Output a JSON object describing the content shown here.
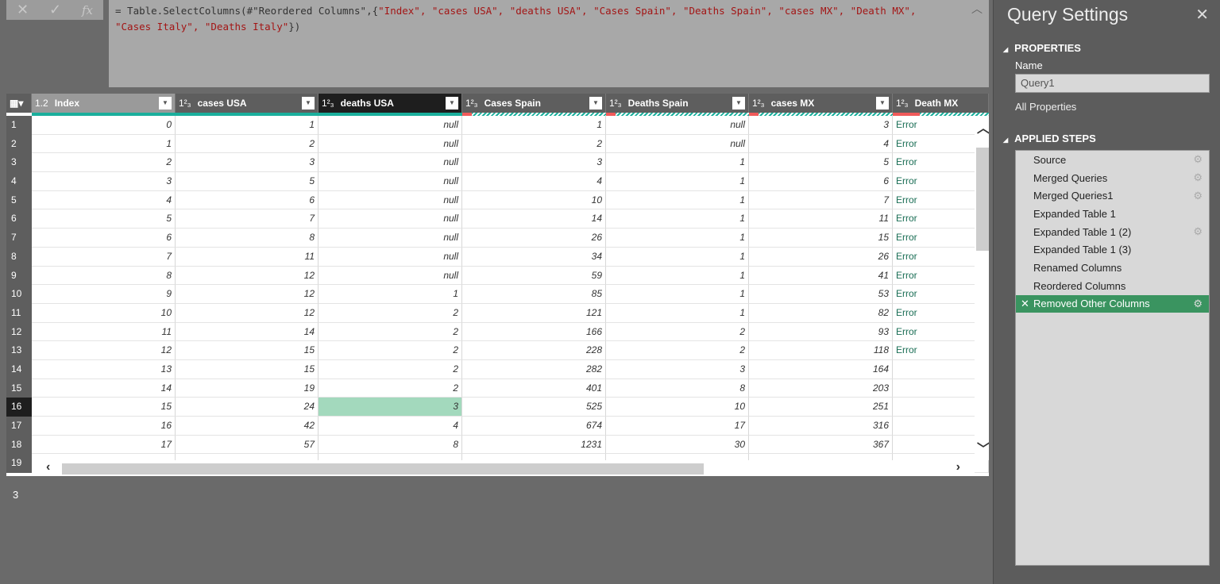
{
  "formula_bar": {
    "cancel_icon": "✕",
    "commit_icon": "✓",
    "fx_label": "fx",
    "prefix": "= Table.SelectColumns(#\"Reordered Columns\",{",
    "strings": "\"Index\", \"cases USA\", \"deaths USA\", \"Cases Spain\", \"Deaths Spain\", \"cases MX\", \"Death MX\", \"Cases Italy\", \"Deaths Italy\"",
    "suffix": "})"
  },
  "grid": {
    "columns": [
      {
        "type": "1.2",
        "name": "Index",
        "width": 181
      },
      {
        "type": "1²₃",
        "name": "cases USA",
        "width": 180
      },
      {
        "type": "1²₃",
        "name": "deaths USA",
        "width": 181,
        "selected": true
      },
      {
        "type": "1²₃",
        "name": "Cases Spain",
        "width": 181
      },
      {
        "type": "1²₃",
        "name": "Deaths Spain",
        "width": 180
      },
      {
        "type": "1²₃",
        "name": "cases MX",
        "width": 181
      },
      {
        "type": "1²₃",
        "name": "Death MX",
        "width": 121
      }
    ],
    "rows": [
      [
        "0",
        "1",
        "null",
        "1",
        "null",
        "3",
        "Error"
      ],
      [
        "1",
        "2",
        "null",
        "2",
        "null",
        "4",
        "Error"
      ],
      [
        "2",
        "3",
        "null",
        "3",
        "1",
        "5",
        "Error"
      ],
      [
        "3",
        "5",
        "null",
        "4",
        "1",
        "6",
        "Error"
      ],
      [
        "4",
        "6",
        "null",
        "10",
        "1",
        "7",
        "Error"
      ],
      [
        "5",
        "7",
        "null",
        "14",
        "1",
        "11",
        "Error"
      ],
      [
        "6",
        "8",
        "null",
        "26",
        "1",
        "15",
        "Error"
      ],
      [
        "7",
        "11",
        "null",
        "34",
        "1",
        "26",
        "Error"
      ],
      [
        "8",
        "12",
        "null",
        "59",
        "1",
        "41",
        "Error"
      ],
      [
        "9",
        "12",
        "1",
        "85",
        "1",
        "53",
        "Error"
      ],
      [
        "10",
        "12",
        "2",
        "121",
        "1",
        "82",
        "Error"
      ],
      [
        "11",
        "14",
        "2",
        "166",
        "2",
        "93",
        "Error"
      ],
      [
        "12",
        "15",
        "2",
        "228",
        "2",
        "118",
        "Error"
      ],
      [
        "13",
        "15",
        "2",
        "282",
        "3",
        "164",
        ""
      ],
      [
        "14",
        "19",
        "2",
        "401",
        "8",
        "203",
        ""
      ],
      [
        "15",
        "24",
        "3",
        "525",
        "10",
        "251",
        ""
      ],
      [
        "16",
        "42",
        "4",
        "674",
        "17",
        "316",
        ""
      ],
      [
        "17",
        "57",
        "8",
        "1231",
        "30",
        "367",
        ""
      ],
      [
        "",
        "",
        "",
        "",
        "",
        "",
        ""
      ]
    ],
    "selected_row": 16,
    "highlight_color": "#a3d9bd"
  },
  "status_value": "3",
  "query_settings": {
    "title": "Query Settings",
    "properties_header": "PROPERTIES",
    "name_label": "Name",
    "name_value": "Query1",
    "all_properties": "All Properties",
    "applied_steps_header": "APPLIED STEPS",
    "steps": [
      {
        "label": "Source",
        "gear": true
      },
      {
        "label": "Merged Queries",
        "gear": true
      },
      {
        "label": "Merged Queries1",
        "gear": true
      },
      {
        "label": "Expanded Table 1",
        "gear": false
      },
      {
        "label": "Expanded Table 1 (2)",
        "gear": true
      },
      {
        "label": "Expanded Table 1 (3)",
        "gear": false
      },
      {
        "label": "Renamed Columns",
        "gear": false
      },
      {
        "label": "Reordered Columns",
        "gear": false
      },
      {
        "label": "Removed Other Columns",
        "gear": true,
        "active": true
      }
    ],
    "active_color": "#3a9460"
  }
}
